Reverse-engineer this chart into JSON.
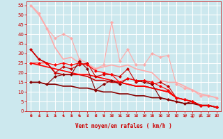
{
  "bg_color": "#cce8ee",
  "grid_color": "#ffffff",
  "xlabel": "Vent moyen/en rafales ( km/h )",
  "xlabel_color": "#cc0000",
  "tick_color": "#cc0000",
  "xlim": [
    -0.5,
    23.5
  ],
  "ylim": [
    0,
    57
  ],
  "yticks": [
    0,
    5,
    10,
    15,
    20,
    25,
    30,
    35,
    40,
    45,
    50,
    55
  ],
  "xticks": [
    0,
    1,
    2,
    3,
    4,
    5,
    6,
    7,
    8,
    9,
    10,
    11,
    12,
    13,
    14,
    15,
    16,
    17,
    18,
    19,
    20,
    21,
    22,
    23
  ],
  "series": [
    {
      "x": [
        0,
        1,
        2,
        3,
        4,
        5,
        6,
        7,
        8,
        9,
        10,
        11,
        12,
        13,
        14,
        15,
        16,
        17,
        18,
        19,
        20,
        21,
        22,
        23
      ],
      "y": [
        55,
        51,
        43,
        38,
        40,
        38,
        27,
        25,
        22,
        24,
        46,
        26,
        32,
        24,
        24,
        30,
        28,
        29,
        14,
        12,
        11,
        8,
        8,
        7
      ],
      "color": "#ffaaaa",
      "marker": "D",
      "markersize": 2,
      "linewidth": 0.8,
      "linestyle": "-",
      "zorder": 2
    },
    {
      "x": [
        0,
        1,
        2,
        3,
        4,
        5,
        6,
        7,
        8,
        9,
        10,
        11,
        12,
        13,
        14,
        15,
        16,
        17,
        18,
        19,
        20,
        21,
        22,
        23
      ],
      "y": [
        55,
        50,
        43,
        33,
        27,
        28,
        25,
        24,
        22,
        23,
        24,
        23,
        24,
        22,
        21,
        20,
        16,
        15,
        15,
        13,
        11,
        9,
        8,
        7
      ],
      "color": "#ffaaaa",
      "marker": null,
      "markersize": 0,
      "linewidth": 1.2,
      "linestyle": "-",
      "zorder": 3
    },
    {
      "x": [
        0,
        1,
        2,
        3,
        4,
        5,
        6,
        7,
        8,
        9,
        10,
        11,
        12,
        13,
        14,
        15,
        16,
        17,
        18,
        19,
        20,
        21,
        22,
        23
      ],
      "y": [
        32,
        27,
        25,
        20,
        23,
        22,
        24,
        25,
        18,
        19,
        19,
        18,
        22,
        15,
        16,
        14,
        15,
        13,
        7,
        6,
        5,
        3,
        3,
        2
      ],
      "color": "#cc0000",
      "marker": "D",
      "markersize": 2,
      "linewidth": 0.8,
      "linestyle": "-",
      "zorder": 4
    },
    {
      "x": [
        0,
        1,
        2,
        3,
        4,
        5,
        6,
        7,
        8,
        9,
        10,
        11,
        12,
        13,
        14,
        15,
        16,
        17,
        18,
        19,
        20,
        21,
        22,
        23
      ],
      "y": [
        32,
        27,
        25,
        20,
        19,
        19,
        19,
        18,
        16,
        16,
        15,
        15,
        14,
        13,
        13,
        12,
        11,
        10,
        7,
        6,
        5,
        3,
        3,
        2
      ],
      "color": "#cc0000",
      "marker": null,
      "markersize": 0,
      "linewidth": 1.2,
      "linestyle": "-",
      "zorder": 3
    },
    {
      "x": [
        0,
        1,
        2,
        3,
        4,
        5,
        6,
        7,
        8,
        9,
        10,
        11,
        12,
        13,
        14,
        15,
        16,
        17,
        18,
        19,
        20,
        21,
        22,
        23
      ],
      "y": [
        25,
        25,
        25,
        24,
        25,
        24,
        25,
        24,
        21,
        20,
        19,
        15,
        17,
        16,
        16,
        15,
        13,
        11,
        7,
        6,
        5,
        3,
        3,
        2
      ],
      "color": "#ff0000",
      "marker": "D",
      "markersize": 2,
      "linewidth": 0.8,
      "linestyle": "-",
      "zorder": 5
    },
    {
      "x": [
        0,
        1,
        2,
        3,
        4,
        5,
        6,
        7,
        8,
        9,
        10,
        11,
        12,
        13,
        14,
        15,
        16,
        17,
        18,
        19,
        20,
        21,
        22,
        23
      ],
      "y": [
        25,
        24,
        23,
        22,
        21,
        20,
        19,
        19,
        18,
        17,
        16,
        15,
        14,
        13,
        13,
        12,
        11,
        10,
        7,
        6,
        5,
        3,
        3,
        2
      ],
      "color": "#ff0000",
      "marker": null,
      "markersize": 0,
      "linewidth": 1.2,
      "linestyle": "-",
      "zorder": 3
    },
    {
      "x": [
        0,
        1,
        2,
        3,
        4,
        5,
        6,
        7,
        8,
        9,
        10,
        11,
        12,
        13,
        14,
        15,
        16,
        17,
        18,
        19,
        20,
        21,
        22,
        23
      ],
      "y": [
        15,
        15,
        14,
        18,
        19,
        19,
        26,
        22,
        11,
        14,
        16,
        14,
        17,
        16,
        15,
        14,
        7,
        6,
        5,
        4,
        5,
        3,
        3,
        2
      ],
      "color": "#880000",
      "marker": "D",
      "markersize": 2,
      "linewidth": 0.8,
      "linestyle": "-",
      "zorder": 4
    },
    {
      "x": [
        0,
        1,
        2,
        3,
        4,
        5,
        6,
        7,
        8,
        9,
        10,
        11,
        12,
        13,
        14,
        15,
        16,
        17,
        18,
        19,
        20,
        21,
        22,
        23
      ],
      "y": [
        15,
        15,
        14,
        14,
        13,
        13,
        12,
        12,
        11,
        10,
        10,
        9,
        9,
        8,
        8,
        7,
        7,
        6,
        5,
        4,
        4,
        3,
        3,
        2
      ],
      "color": "#880000",
      "marker": null,
      "markersize": 0,
      "linewidth": 1.2,
      "linestyle": "-",
      "zorder": 3
    }
  ],
  "arrow_color": "#cc0000",
  "arrow_angles": [
    225,
    225,
    225,
    225,
    225,
    225,
    225,
    225,
    225,
    225,
    225,
    225,
    225,
    225,
    225,
    225,
    225,
    225,
    180,
    135,
    90,
    45,
    0,
    315
  ]
}
